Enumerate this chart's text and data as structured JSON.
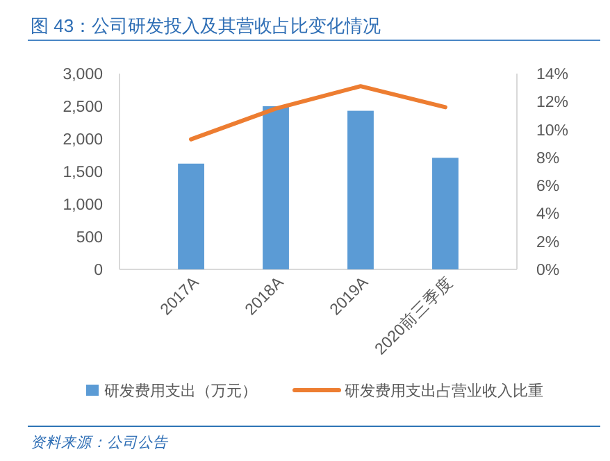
{
  "chart_data": {
    "type": "bar",
    "title": "图 43：公司研发投入及其营收占比变化情况",
    "categories": [
      "2017A",
      "2018A",
      "2019A",
      "2020前三季度"
    ],
    "series": [
      {
        "name": "研发费用支出（万元）",
        "color": "#5b9bd5",
        "values": [
          1620,
          2500,
          2430,
          1710
        ]
      },
      {
        "name": "研发费用支出占营业收入比重",
        "type": "line",
        "axis": "y2",
        "color": "#ed7d31",
        "values": [
          9.3,
          11.5,
          13.1,
          11.6
        ]
      }
    ],
    "ylim": [
      0,
      3000
    ],
    "yticks": [
      {
        "value": 0,
        "label": "0"
      },
      {
        "value": 500,
        "label": "500"
      },
      {
        "value": 1000,
        "label": "1,000"
      },
      {
        "value": 1500,
        "label": "1,500"
      },
      {
        "value": 2000,
        "label": "2,000"
      },
      {
        "value": 2500,
        "label": "2,500"
      },
      {
        "value": 3000,
        "label": "3,000"
      }
    ],
    "y2lim": [
      0,
      14
    ],
    "y2ticks": [
      {
        "value": 0,
        "label": "0%"
      },
      {
        "value": 2,
        "label": "2%"
      },
      {
        "value": 4,
        "label": "4%"
      },
      {
        "value": 6,
        "label": "6%"
      },
      {
        "value": 8,
        "label": "8%"
      },
      {
        "value": 10,
        "label": "10%"
      },
      {
        "value": 12,
        "label": "12%"
      },
      {
        "value": 14,
        "label": "14%"
      }
    ],
    "legend": "bottom",
    "annotations": [
      "资料来源：公司公告"
    ]
  }
}
